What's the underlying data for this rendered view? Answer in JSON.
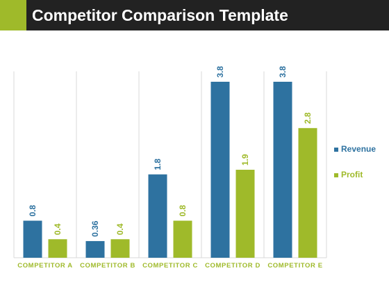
{
  "title": "Competitor Comparison Template",
  "colors": {
    "title_bg": "#222222",
    "accent": "#9fba2a",
    "revenue": "#2e72a0",
    "profit": "#9fba2a"
  },
  "chart_data": {
    "type": "bar",
    "title": "",
    "xlabel": "",
    "ylabel": "",
    "categories": [
      "COMPETITOR A",
      "COMPETITOR B",
      "COMPETITOR C",
      "COMPETITOR D",
      "COMPETITOR E"
    ],
    "series": [
      {
        "name": "Revenue",
        "values": [
          0.8,
          0.36,
          1.8,
          3.8,
          3.8
        ],
        "labels": [
          "0.8",
          "0.36",
          "1.8",
          "3.8",
          "3.8"
        ]
      },
      {
        "name": "Profit",
        "values": [
          0.4,
          0.4,
          0.8,
          1.9,
          2.8
        ],
        "labels": [
          "0.4",
          "0.4",
          "0.8",
          "1.9",
          "2.8"
        ]
      }
    ],
    "ylim": [
      0,
      4
    ],
    "grid": false,
    "legend": "right"
  }
}
